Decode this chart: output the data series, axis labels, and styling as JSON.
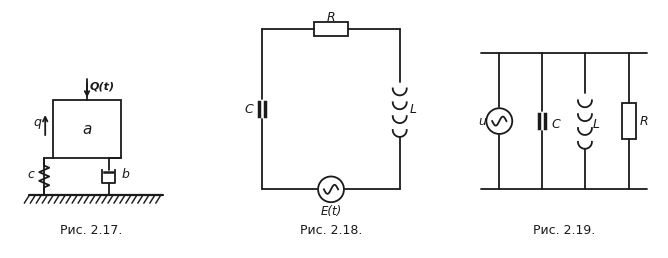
{
  "fig_width": 6.68,
  "fig_height": 2.58,
  "dpi": 100,
  "bg_color": "#ffffff",
  "line_color": "#1a1a1a",
  "label_fig17": "Рис. 2.17.",
  "label_fig18": "Рис. 2.18.",
  "label_fig19": "Рис. 2.19.",
  "caption_fontsize": 9,
  "lw": 1.3
}
